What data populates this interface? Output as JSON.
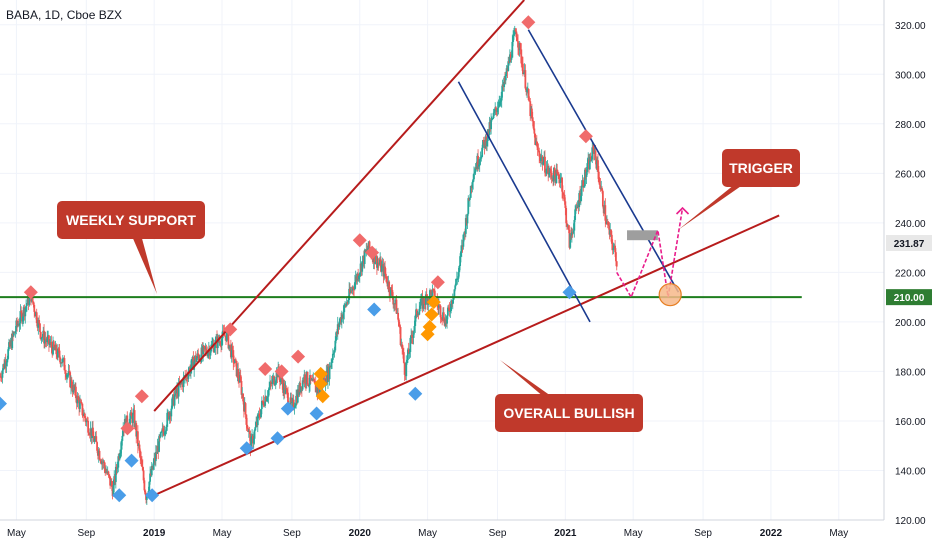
{
  "header": {
    "symbol_title": "BABA, 1D, Cboe BZX"
  },
  "colors": {
    "background": "#ffffff",
    "grid": "#f0f3fa",
    "candle_up": "#26a69a",
    "candle_down": "#ef5350",
    "trendline": "#b71c1c",
    "channel": "#1a3a8f",
    "support_line": "#1e7e1e",
    "callout_box": "#c0392b",
    "callout_text": "#ffffff",
    "projection": "#e91e8c",
    "trigger_zone": "#9e9e9e",
    "marker_top": "#f06b6b",
    "marker_bottom": "#4a9de8",
    "marker_orange": "#ff9800",
    "circle_fill": "#f7b98a",
    "circle_stroke": "#e67e22",
    "price_badge": "#2e7d32",
    "current_price_badge": "#e8e8e8"
  },
  "chart_data": {
    "type": "candlestick",
    "title": "BABA, 1D, Cboe BZX",
    "ylim": [
      120,
      330
    ],
    "y_ticks": [
      120,
      140,
      160,
      180,
      200,
      220,
      240,
      260,
      280,
      300,
      320
    ],
    "x_tick_labels": [
      "May",
      "Sep",
      "2019",
      "May",
      "Sep",
      "2020",
      "May",
      "Sep",
      "2021",
      "May",
      "Sep",
      "2022",
      "May"
    ],
    "x_ticks": [
      2018.33,
      2018.67,
      2019.0,
      2019.33,
      2019.67,
      2020.0,
      2020.33,
      2020.67,
      2021.0,
      2021.33,
      2021.67,
      2022.0,
      2022.33
    ],
    "xlim": [
      2018.25,
      2022.55
    ],
    "series": [
      {
        "name": "",
        "price_anchors": [
          [
            2018.25,
            178
          ],
          [
            2018.33,
            198
          ],
          [
            2018.4,
            211
          ],
          [
            2018.45,
            195
          ],
          [
            2018.55,
            185
          ],
          [
            2018.62,
            170
          ],
          [
            2018.72,
            150
          ],
          [
            2018.8,
            132
          ],
          [
            2018.85,
            158
          ],
          [
            2018.9,
            162
          ],
          [
            2018.96,
            130
          ],
          [
            2019.02,
            150
          ],
          [
            2019.1,
            170
          ],
          [
            2019.2,
            185
          ],
          [
            2019.28,
            190
          ],
          [
            2019.35,
            195
          ],
          [
            2019.42,
            175
          ],
          [
            2019.47,
            150
          ],
          [
            2019.53,
            168
          ],
          [
            2019.6,
            180
          ],
          [
            2019.67,
            165
          ],
          [
            2019.73,
            178
          ],
          [
            2019.8,
            172
          ],
          [
            2019.85,
            180
          ],
          [
            2019.9,
            200
          ],
          [
            2019.97,
            215
          ],
          [
            2020.04,
            230
          ],
          [
            2020.12,
            220
          ],
          [
            2020.18,
            205
          ],
          [
            2020.22,
            180
          ],
          [
            2020.28,
            205
          ],
          [
            2020.35,
            212
          ],
          [
            2020.42,
            200
          ],
          [
            2020.48,
            220
          ],
          [
            2020.55,
            260
          ],
          [
            2020.62,
            275
          ],
          [
            2020.7,
            295
          ],
          [
            2020.76,
            318
          ],
          [
            2020.8,
            300
          ],
          [
            2020.86,
            270
          ],
          [
            2020.92,
            260
          ],
          [
            2020.98,
            258
          ],
          [
            2021.02,
            232
          ],
          [
            2021.08,
            255
          ],
          [
            2021.14,
            270
          ],
          [
            2021.2,
            240
          ],
          [
            2021.25,
            225
          ]
        ]
      }
    ],
    "current_price": 231.87,
    "support_level": 210.0,
    "price_labels": [
      "231.87",
      "210.00"
    ],
    "annotations": [
      {
        "text": "WEEKLY SUPPORT"
      },
      {
        "text": "TRIGGER"
      },
      {
        "text": "OVERALL BULLISH"
      }
    ],
    "lines": {
      "upper_trend": [
        [
          2019.0,
          164
        ],
        [
          2020.8,
          330
        ]
      ],
      "lower_trend": [
        [
          2019.0,
          130
        ],
        [
          2022.04,
          243
        ]
      ],
      "support": [
        [
          2018.25,
          210
        ],
        [
          2022.15,
          210
        ]
      ],
      "channel_left": [
        [
          2020.48,
          297
        ],
        [
          2021.12,
          200
        ]
      ],
      "channel_right": [
        [
          2020.82,
          318
        ],
        [
          2021.55,
          212
        ]
      ]
    },
    "projection_path": [
      [
        2021.25,
        220
      ],
      [
        2021.32,
        210
      ],
      [
        2021.45,
        237
      ],
      [
        2021.5,
        210
      ],
      [
        2021.57,
        246
      ]
    ],
    "trigger_zone": {
      "x": [
        2021.3,
        2021.45
      ],
      "y": [
        233,
        237
      ]
    },
    "circle_marker": {
      "x": 2021.51,
      "y": 211
    },
    "markers_top": [
      [
        2018.4,
        212
      ],
      [
        2018.87,
        157
      ],
      [
        2018.94,
        170
      ],
      [
        2019.37,
        197
      ],
      [
        2019.54,
        181
      ],
      [
        2019.62,
        180
      ],
      [
        2019.7,
        186
      ],
      [
        2020.0,
        233
      ],
      [
        2020.06,
        228
      ],
      [
        2020.38,
        216
      ],
      [
        2020.82,
        321
      ],
      [
        2021.1,
        275
      ]
    ],
    "markers_bottom": [
      [
        2018.25,
        167
      ],
      [
        2018.83,
        130
      ],
      [
        2018.89,
        144
      ],
      [
        2018.99,
        130
      ],
      [
        2019.45,
        149
      ],
      [
        2019.6,
        153
      ],
      [
        2019.65,
        165
      ],
      [
        2019.79,
        163
      ],
      [
        2020.07,
        205
      ],
      [
        2020.27,
        171
      ],
      [
        2021.02,
        212
      ]
    ],
    "markers_orange": [
      [
        2019.81,
        179
      ],
      [
        2019.81,
        175
      ],
      [
        2019.82,
        170
      ],
      [
        2020.36,
        208
      ],
      [
        2020.35,
        203
      ],
      [
        2020.34,
        198
      ],
      [
        2020.33,
        195
      ]
    ]
  }
}
